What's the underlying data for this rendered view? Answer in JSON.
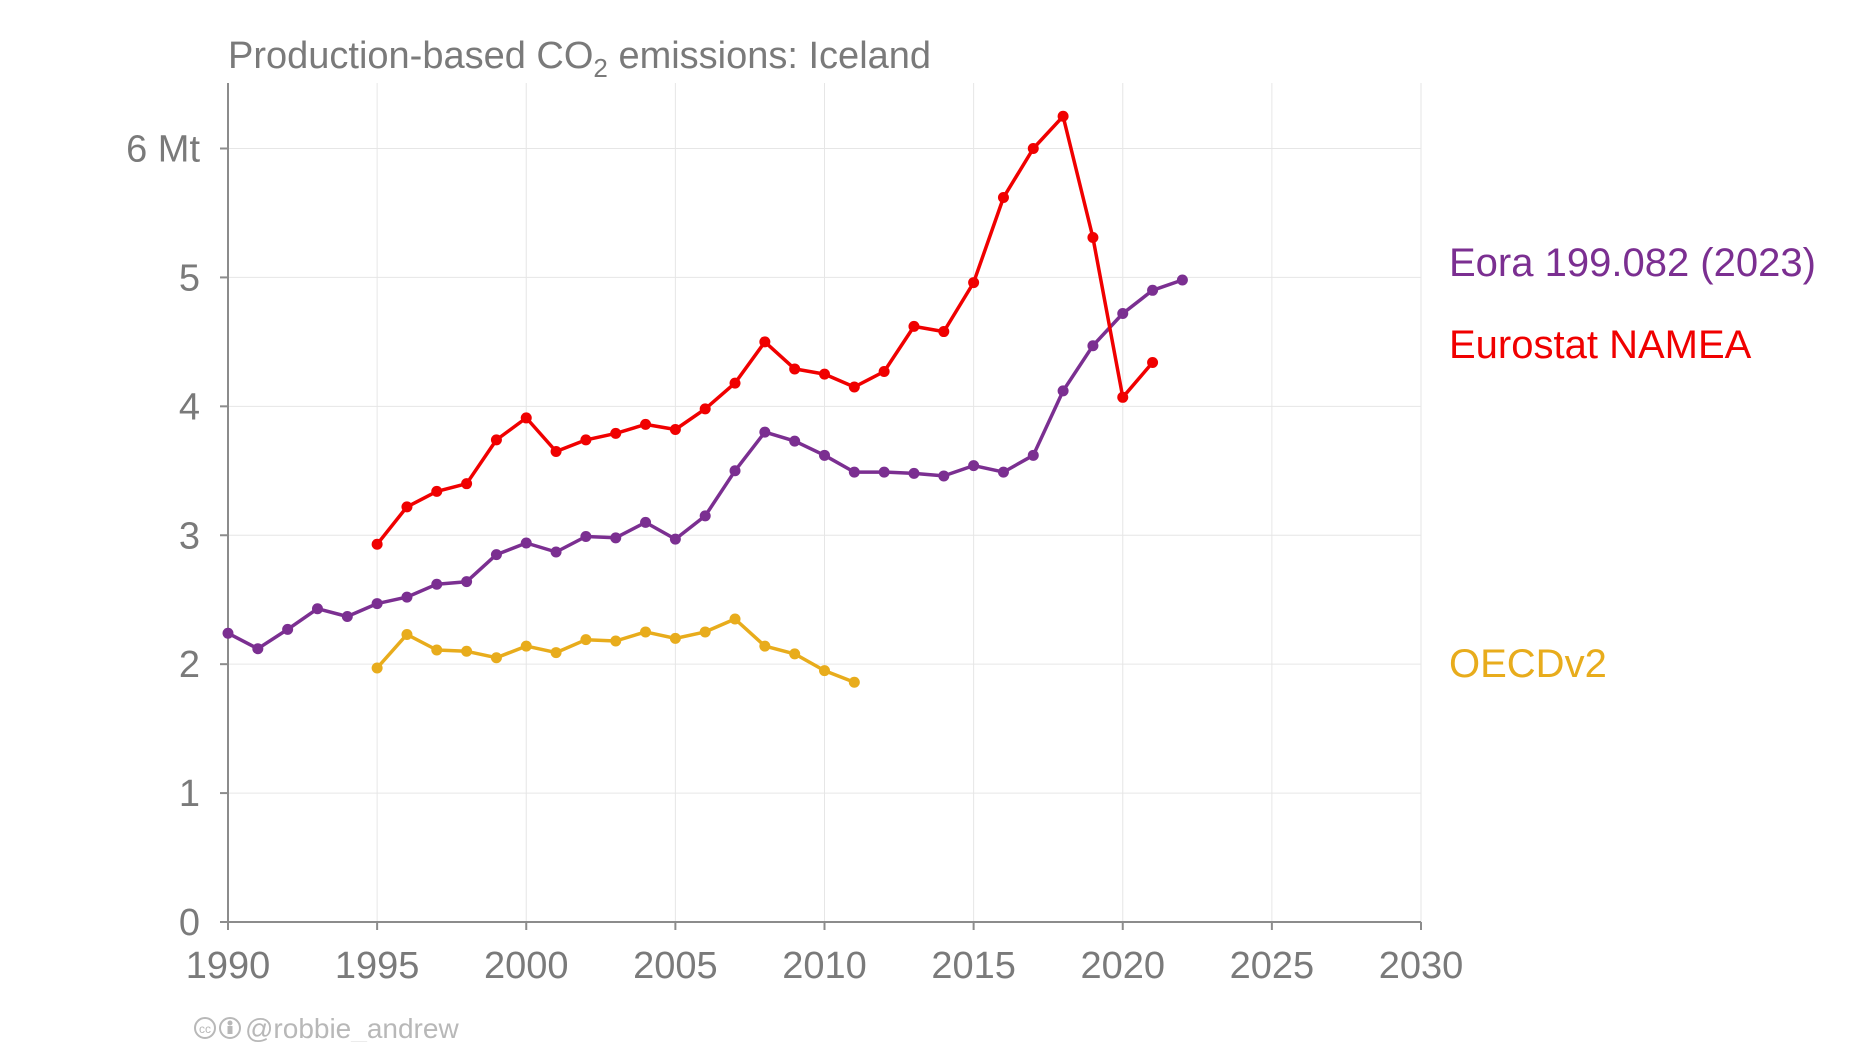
{
  "chart_data": {
    "type": "line",
    "title": "Production-based CO",
    "title_sub": "2",
    "title_rest": " emissions: Iceland",
    "xlim": [
      1990,
      2030
    ],
    "ylim": [
      0,
      6.5
    ],
    "x_ticks": [
      "1990",
      "1995",
      "2000",
      "2005",
      "2010",
      "2015",
      "2020",
      "2025",
      "2030"
    ],
    "y_ticks": [
      "0",
      "1",
      "2",
      "3",
      "4",
      "5",
      "6 Mt"
    ],
    "grid": true,
    "legend_placement": "right, labels beside series",
    "series": [
      {
        "name": "Eora 199.082 (2023)",
        "color": "#7b2f91",
        "x": [
          1990,
          1991,
          1992,
          1993,
          1994,
          1995,
          1996,
          1997,
          1998,
          1999,
          2000,
          2001,
          2002,
          2003,
          2004,
          2005,
          2006,
          2007,
          2008,
          2009,
          2010,
          2011,
          2012,
          2013,
          2014,
          2015,
          2016,
          2017,
          2018,
          2019,
          2020,
          2021,
          2022
        ],
        "y": [
          2.24,
          2.12,
          2.27,
          2.43,
          2.37,
          2.47,
          2.52,
          2.62,
          2.64,
          2.85,
          2.94,
          2.87,
          2.99,
          2.98,
          3.1,
          2.97,
          3.15,
          3.5,
          3.8,
          3.73,
          3.62,
          3.49,
          3.49,
          3.48,
          3.46,
          3.54,
          3.49,
          3.62,
          4.12,
          4.47,
          4.72,
          4.9,
          4.98
        ]
      },
      {
        "name": "Eurostat NAMEA",
        "color": "#f00000",
        "x": [
          1995,
          1996,
          1997,
          1998,
          1999,
          2000,
          2001,
          2002,
          2003,
          2004,
          2005,
          2006,
          2007,
          2008,
          2009,
          2010,
          2011,
          2012,
          2013,
          2014,
          2015,
          2016,
          2017,
          2018,
          2019,
          2020,
          2021
        ],
        "y": [
          2.93,
          3.22,
          3.34,
          3.4,
          3.74,
          3.91,
          3.65,
          3.74,
          3.79,
          3.86,
          3.82,
          3.98,
          4.18,
          4.5,
          4.29,
          4.25,
          4.15,
          4.27,
          4.62,
          4.58,
          4.96,
          5.62,
          6.0,
          6.25,
          5.31,
          4.07,
          4.34
        ]
      },
      {
        "name": "OECDv2",
        "color": "#e8ac1c",
        "x": [
          1995,
          1996,
          1997,
          1998,
          1999,
          2000,
          2001,
          2002,
          2003,
          2004,
          2005,
          2006,
          2007,
          2008,
          2009,
          2010,
          2011
        ],
        "y": [
          1.97,
          2.23,
          2.11,
          2.1,
          2.05,
          2.14,
          2.09,
          2.19,
          2.18,
          2.25,
          2.2,
          2.25,
          2.35,
          2.14,
          2.08,
          1.95,
          1.86
        ]
      }
    ]
  },
  "credit": "@robbie_andrew"
}
